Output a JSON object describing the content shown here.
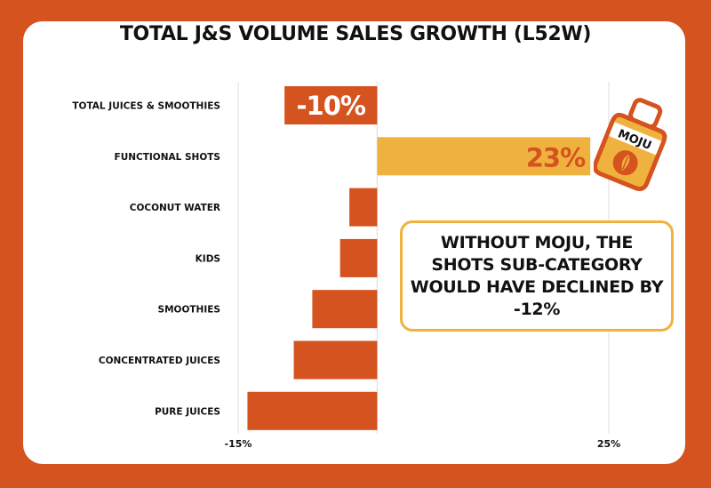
{
  "colors": {
    "background": "#D4531F",
    "negative_bar": "#D4531F",
    "positive_bar": "#F0B23E",
    "gridline": "#E2E2E2",
    "callout_border": "#F0B23E"
  },
  "chart_data": {
    "type": "bar",
    "orientation": "horizontal",
    "title": "TOTAL J&S VOLUME SALES GROWTH (L52W)",
    "xlabel": "",
    "ylabel": "",
    "xlim": [
      -15,
      25
    ],
    "x_ticks": [
      -15,
      25
    ],
    "x_tick_labels": [
      "-15%",
      "25%"
    ],
    "grid": "vertical lines at -15%, 0%, 25%",
    "categories": [
      "TOTAL JUICES & SMOOTHIES",
      "FUNCTIONAL SHOTS",
      "COCONUT WATER",
      "KIDS",
      "SMOOTHIES",
      "CONCENTRATED JUICES",
      "PURE JUICES"
    ],
    "values": [
      -10,
      23,
      -3,
      -4,
      -7,
      -9,
      -14
    ],
    "data_labels": [
      {
        "category": "TOTAL JUICES & SMOOTHIES",
        "text": "-10%"
      },
      {
        "category": "FUNCTIONAL SHOTS",
        "text": "23%"
      }
    ]
  },
  "callout": {
    "text": "WITHOUT MOJU, THE SHOTS SUB-CATEGORY WOULD HAVE DECLINED BY -12%"
  },
  "product_icon": {
    "name": "moju-bottle-icon",
    "label": "MOJU"
  }
}
